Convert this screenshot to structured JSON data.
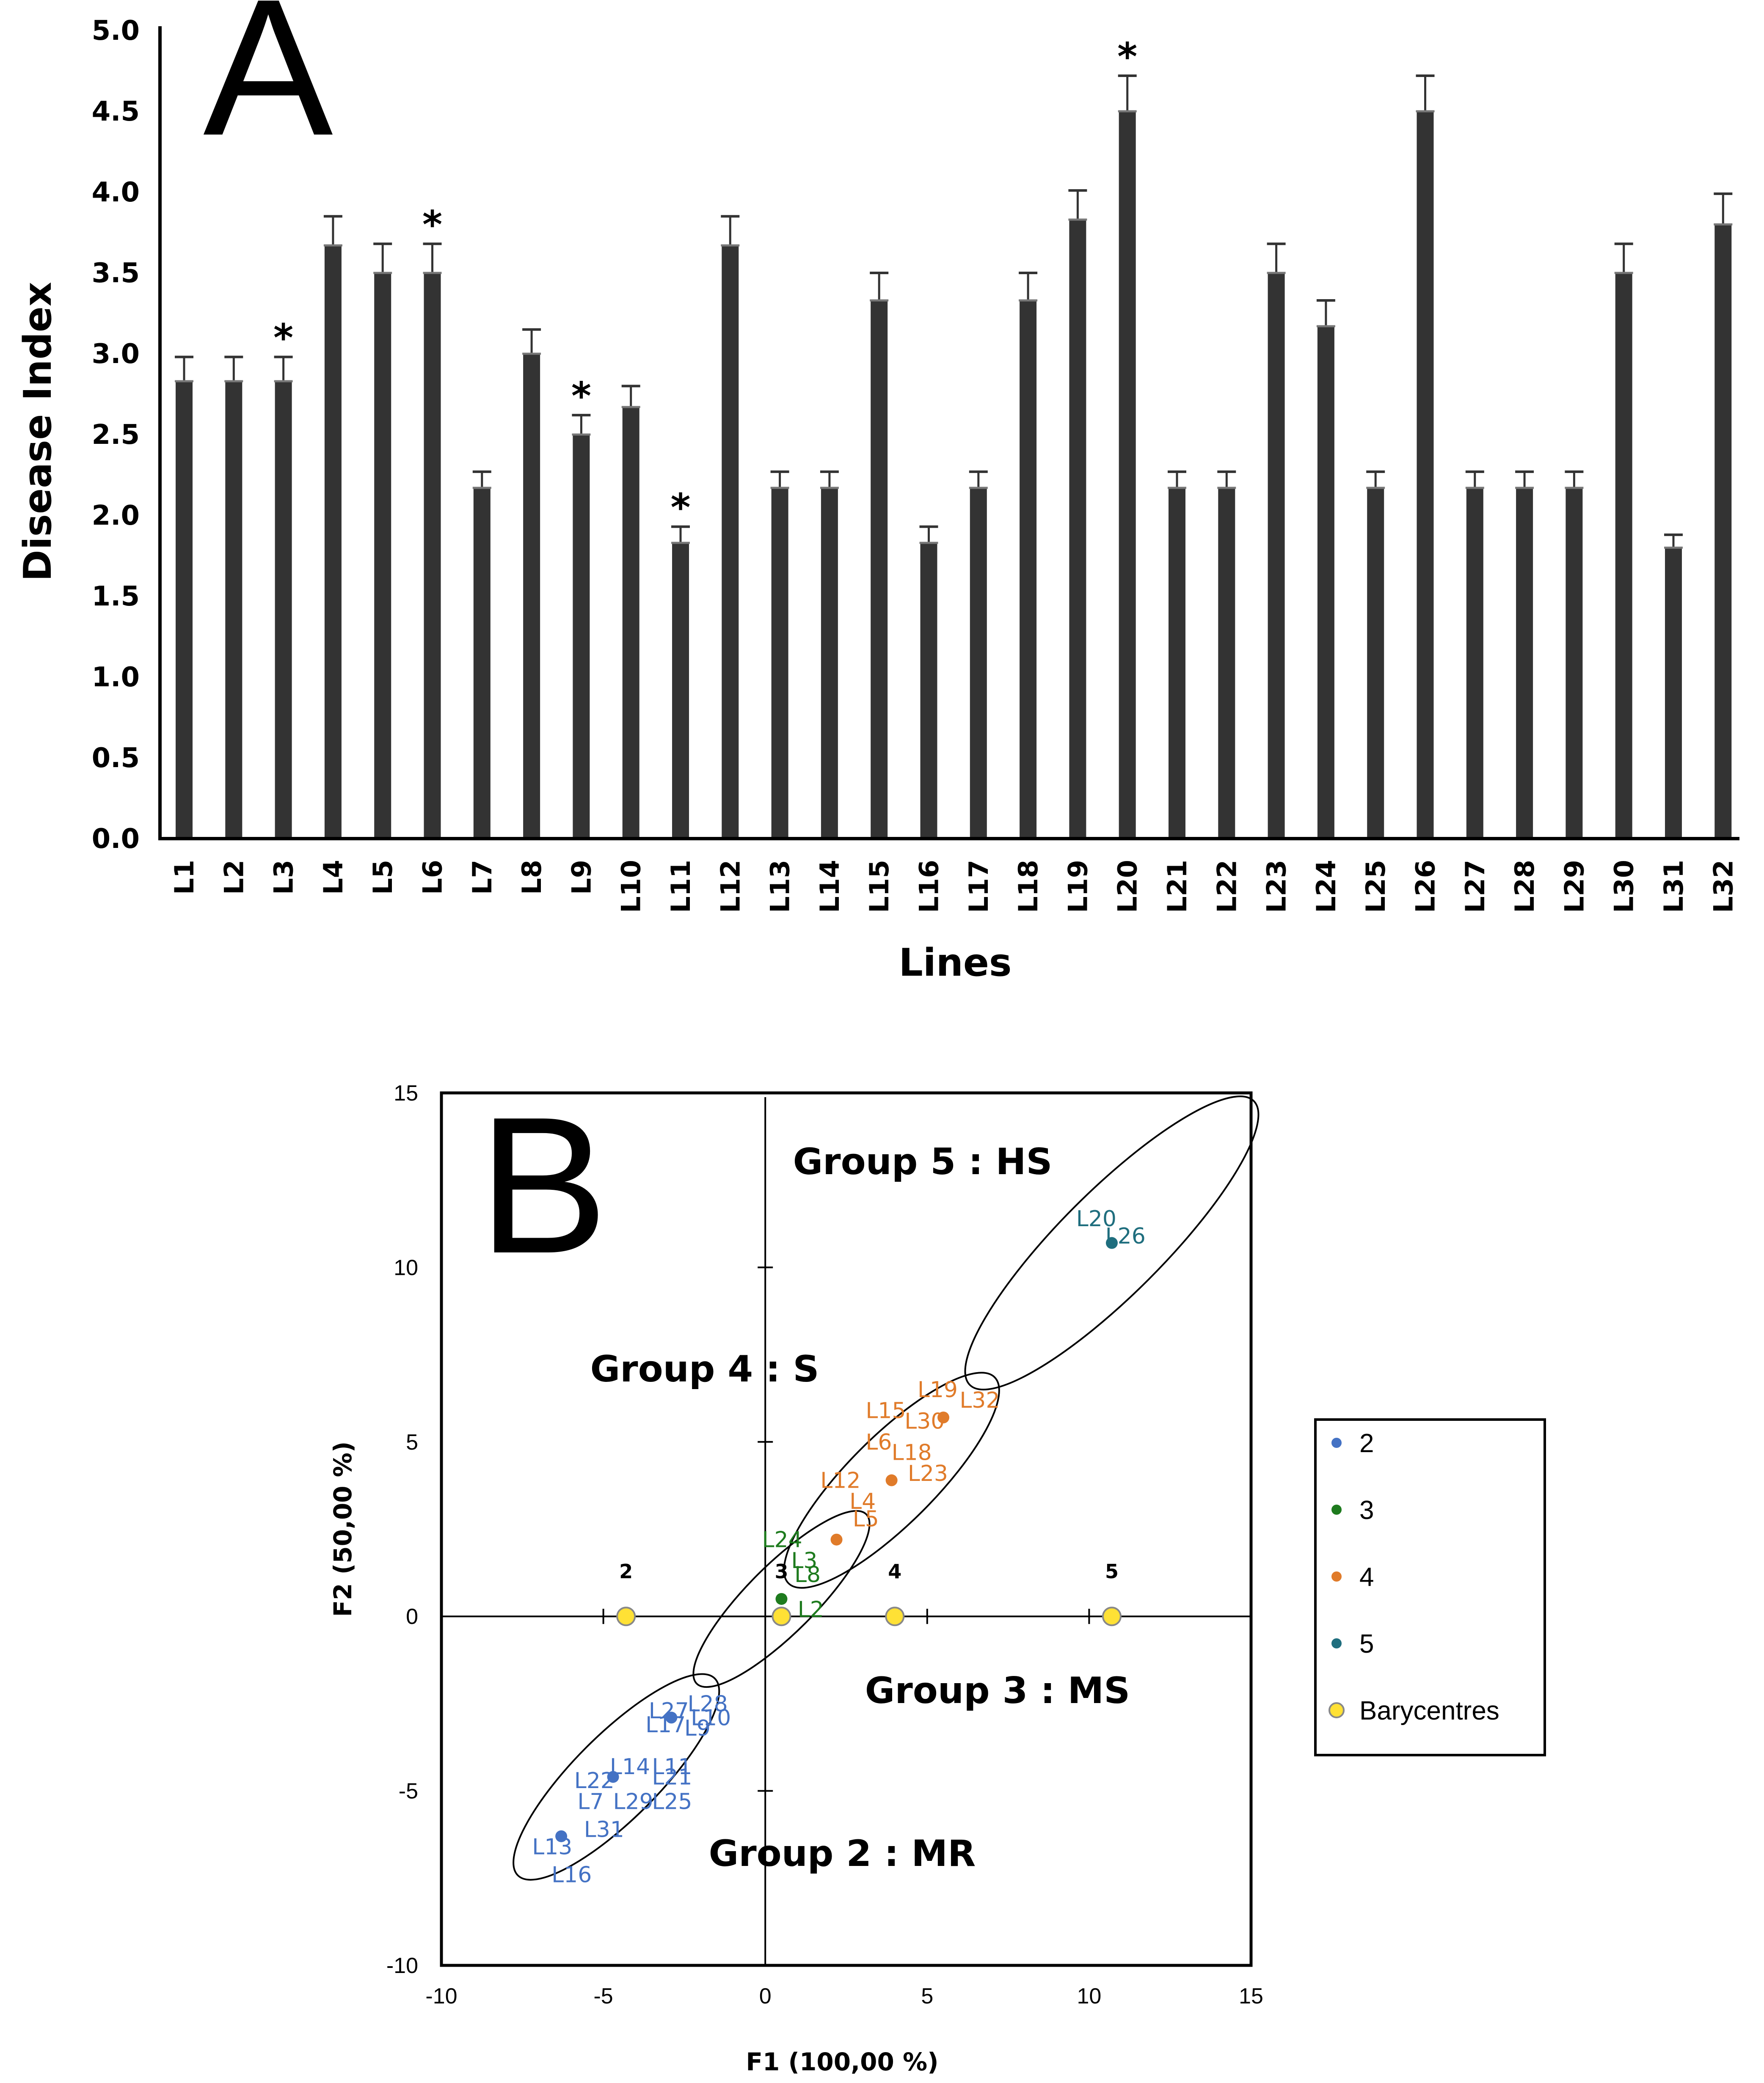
{
  "chart_data": [
    {
      "type": "bar",
      "panel_label": "A",
      "title": "",
      "xlabel": "Lines",
      "ylabel": "Disease Index",
      "ylim": [
        0,
        5
      ],
      "yticks": [
        "0.0",
        "0.5",
        "1.0",
        "1.5",
        "2.0",
        "2.5",
        "3.0",
        "3.5",
        "4.0",
        "4.5",
        "5.0"
      ],
      "categories": [
        "L1",
        "L2",
        "L3",
        "L4",
        "L5",
        "L6",
        "L7",
        "L8",
        "L9",
        "L10",
        "L11",
        "L12",
        "L13",
        "L14",
        "L15",
        "L16",
        "L17",
        "L18",
        "L19",
        "L20",
        "L21",
        "L22",
        "L23",
        "L24",
        "L25",
        "L26",
        "L27",
        "L28",
        "L29",
        "L30",
        "L31",
        "L32"
      ],
      "values": [
        2.83,
        2.83,
        2.83,
        3.67,
        3.5,
        3.5,
        2.17,
        3.0,
        2.5,
        2.67,
        1.83,
        3.67,
        2.17,
        2.17,
        3.33,
        1.83,
        2.17,
        3.33,
        3.83,
        4.5,
        2.17,
        2.17,
        3.5,
        3.17,
        2.17,
        4.5,
        2.17,
        2.17,
        2.17,
        3.5,
        1.8,
        3.8
      ],
      "errors": [
        0.15,
        0.15,
        0.15,
        0.18,
        0.18,
        0.18,
        0.1,
        0.15,
        0.12,
        0.13,
        0.1,
        0.18,
        0.1,
        0.1,
        0.17,
        0.1,
        0.1,
        0.17,
        0.18,
        0.22,
        0.1,
        0.1,
        0.18,
        0.16,
        0.1,
        0.22,
        0.1,
        0.1,
        0.1,
        0.18,
        0.08,
        0.19
      ],
      "significance": [
        {
          "category": "L3",
          "mark": "*"
        },
        {
          "category": "L6",
          "mark": "*"
        },
        {
          "category": "L9",
          "mark": "*"
        },
        {
          "category": "L11",
          "mark": "*"
        },
        {
          "category": "L20",
          "mark": "*"
        }
      ],
      "bar_color": "#333333"
    },
    {
      "type": "scatter",
      "panel_label": "B",
      "title": "",
      "xlabel": "F1 (100,00 %)",
      "ylabel": "F2 (50,00 %)",
      "xlim": [
        -10,
        15
      ],
      "ylim": [
        -10,
        15
      ],
      "xticks": [
        "-10",
        "-5",
        "0",
        "5",
        "10",
        "15"
      ],
      "yticks": [
        "-10",
        "-5",
        "0",
        "5",
        "10",
        "15"
      ],
      "series": [
        {
          "name": "2",
          "color": "#4472C4",
          "x": [
            -2.9,
            -4.7,
            -6.3
          ],
          "y": [
            -2.9,
            -4.6,
            -6.3
          ],
          "labels": [
            "L28",
            "L27",
            "L10",
            "L17",
            "L9",
            "L14",
            "L11",
            "L22",
            "L21",
            "L7",
            "L29",
            "L25",
            "L31",
            "L13",
            "L16"
          ]
        },
        {
          "name": "3",
          "color": "#1E7B1E",
          "x": [
            0.5
          ],
          "y": [
            0.5
          ],
          "labels": [
            "L24",
            "L3",
            "L8",
            "L2"
          ]
        },
        {
          "name": "4",
          "color": "#E07B2A",
          "x": [
            2.2,
            3.9,
            5.5
          ],
          "y": [
            2.2,
            3.9,
            5.7
          ],
          "labels": [
            "L19",
            "L32",
            "L15",
            "L30",
            "L6",
            "L18",
            "L12",
            "L23",
            "L4",
            "L5"
          ]
        },
        {
          "name": "5",
          "color": "#1F6E7E",
          "x": [
            10.7
          ],
          "y": [
            10.7
          ],
          "labels": [
            "L20",
            "L26"
          ]
        },
        {
          "name": "Barycentres",
          "color": "#FFE135",
          "x": [
            -4.3,
            0.5,
            4.0,
            10.7
          ],
          "y": [
            0,
            0,
            0,
            0
          ],
          "labels": [
            "2",
            "3",
            "4",
            "5"
          ]
        }
      ],
      "groups": [
        {
          "label": "Group 5 : HS"
        },
        {
          "label": "Group 4 : S"
        },
        {
          "label": "Group 3 : MS"
        },
        {
          "label": "Group 2 : MR"
        }
      ],
      "legend": [
        "2",
        "3",
        "4",
        "5",
        "Barycentres"
      ],
      "legend_position": "right"
    }
  ]
}
